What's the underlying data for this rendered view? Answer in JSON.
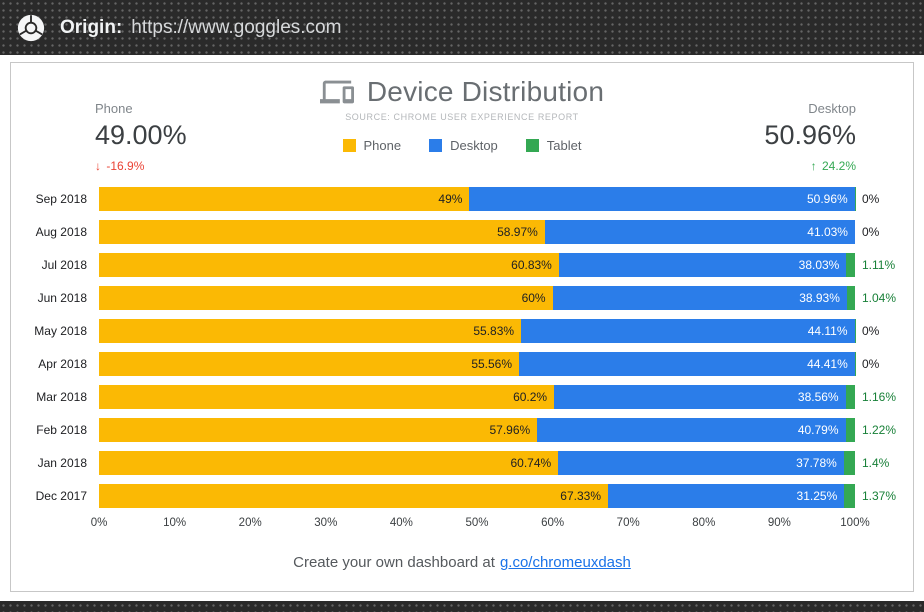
{
  "header": {
    "origin_label": "Origin:",
    "origin_url": "https://www.goggles.com"
  },
  "title": {
    "text": "Device Distribution",
    "source": "SOURCE: CHROME USER EXPERIENCE REPORT"
  },
  "summary": {
    "phone": {
      "label": "Phone",
      "value": "49.00%",
      "arrow": "↓",
      "change": "-16.9%",
      "change_color": "#EA4335"
    },
    "desktop": {
      "label": "Desktop",
      "value": "50.96%",
      "arrow": "↑",
      "change": "24.2%",
      "change_color": "#34A853"
    }
  },
  "legend": [
    {
      "label": "Phone",
      "color": "#FBB904"
    },
    {
      "label": "Desktop",
      "color": "#2B7DE9"
    },
    {
      "label": "Tablet",
      "color": "#34A853"
    }
  ],
  "chart_data": {
    "type": "bar",
    "orientation": "horizontal",
    "stacked": true,
    "unit": "%",
    "categories": [
      "Sep 2018",
      "Aug 2018",
      "Jul 2018",
      "Jun 2018",
      "May 2018",
      "Apr 2018",
      "Mar 2018",
      "Feb 2018",
      "Jan 2018",
      "Dec 2017"
    ],
    "series": [
      {
        "name": "Phone",
        "color": "#FBB904",
        "values": [
          49,
          58.97,
          60.83,
          60,
          55.83,
          55.56,
          60.2,
          57.96,
          60.74,
          67.33
        ],
        "labels": [
          "49%",
          "58.97%",
          "60.83%",
          "60%",
          "55.83%",
          "55.56%",
          "60.2%",
          "57.96%",
          "60.74%",
          "67.33%"
        ]
      },
      {
        "name": "Desktop",
        "color": "#2B7DE9",
        "values": [
          50.96,
          41.03,
          38.03,
          38.93,
          44.11,
          44.41,
          38.56,
          40.79,
          37.78,
          31.25
        ],
        "labels": [
          "50.96%",
          "41.03%",
          "38.03%",
          "38.93%",
          "44.11%",
          "44.41%",
          "38.56%",
          "40.79%",
          "37.78%",
          "31.25%"
        ]
      },
      {
        "name": "Tablet",
        "color": "#34A853",
        "values": [
          0,
          0,
          1.11,
          1.04,
          0,
          0,
          1.16,
          1.22,
          1.4,
          1.37
        ],
        "labels": [
          "0%",
          "0%",
          "1.11%",
          "1.04%",
          "0%",
          "0%",
          "1.16%",
          "1.22%",
          "1.4%",
          "1.37%"
        ]
      }
    ],
    "x_axis": {
      "min": 0,
      "max": 100,
      "ticks": [
        "0%",
        "10%",
        "20%",
        "30%",
        "40%",
        "50%",
        "60%",
        "70%",
        "80%",
        "90%",
        "100%"
      ]
    },
    "colors": {
      "phone_bar_label": "#202124",
      "desktop_bar_label": "#ffffff",
      "tablet_label": "#188038",
      "tablet_zero_label": "#202124"
    }
  },
  "footer": {
    "text": "Create your own dashboard at",
    "link_text": "g.co/chromeuxdash"
  }
}
